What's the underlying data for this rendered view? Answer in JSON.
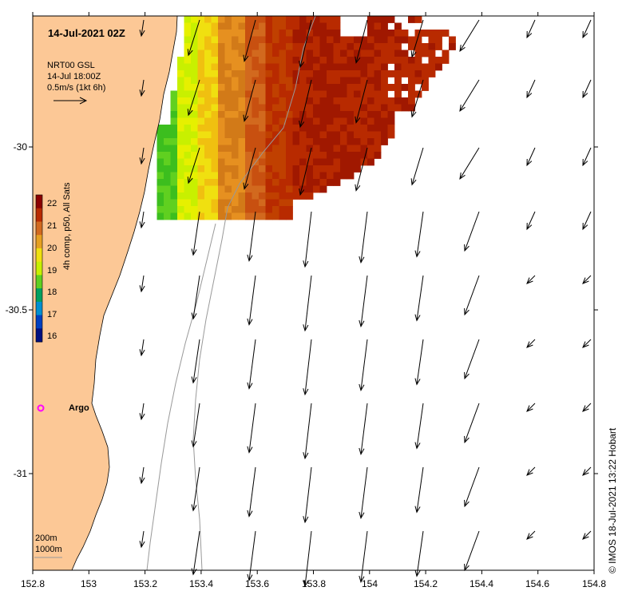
{
  "title": "14-Jul-2021 02Z",
  "velocity_legend": {
    "line1": "NRT00 GSL",
    "line2": "14-Jul 18:00Z",
    "line3": "0.5m/s (1kt 6h)"
  },
  "colorbar": {
    "title": "4h comp, p50, All Sats",
    "ticks": [
      "22",
      "21",
      "20",
      "19",
      "18",
      "17",
      "16"
    ],
    "stops": [
      "#8b0000",
      "#b82a00",
      "#d2691e",
      "#e6a020",
      "#f0e010",
      "#c8f000",
      "#60d020",
      "#00a060",
      "#0090d0",
      "#0040c0",
      "#001080"
    ]
  },
  "axes": {
    "x_ticks": [
      "152.8",
      "153",
      "153.2",
      "153.4",
      "153.6",
      "153.8",
      "154",
      "154.2",
      "154.4",
      "154.6",
      "154.8"
    ],
    "y_ticks": [
      "-30",
      "-30.5",
      "-31"
    ]
  },
  "platform_label": "Argo",
  "depth_contours": [
    "200m",
    "1000m"
  ],
  "credit": "© IMOS 18-Jul-2021 13:22 Hobart",
  "colors": {
    "land": "#fcc896",
    "argo_marker": "#ff00ff",
    "contour": "#999999"
  }
}
